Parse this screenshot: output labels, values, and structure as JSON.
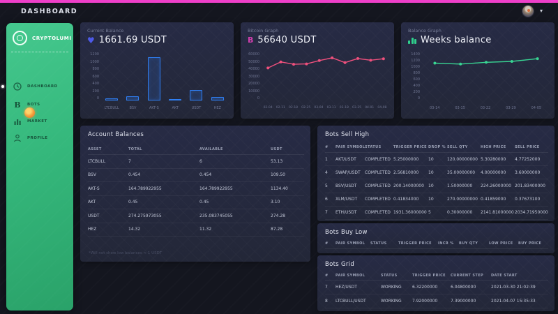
{
  "topbar": {
    "title": "DASHBOARD"
  },
  "user_menu": {
    "avatar_icon": "user-avatar",
    "caret_icon": "chevron-down-icon",
    "caret": "▾"
  },
  "sidebar": {
    "brand": "CRYPTOLUMI",
    "items": [
      {
        "label": "DASHBOARD",
        "icon": "clock-icon",
        "active": true
      },
      {
        "label": "BOTS",
        "icon": "bitcoin-b-icon",
        "active": false
      },
      {
        "label": "MARKET",
        "icon": "bar-chart-icon",
        "active": false
      },
      {
        "label": "PROFILE",
        "icon": "person-icon",
        "active": false
      }
    ]
  },
  "cards": {
    "current_balance": {
      "label": "Current Balance",
      "icon": "heart-icon",
      "heart": "♥",
      "value": "1661.69 USDT"
    },
    "bitcoin_graph": {
      "label": "Bitcoin Graph",
      "icon": "bitcoin-b-icon",
      "b": "B",
      "value": "56640 USDT"
    },
    "balance_graph": {
      "label": "Balance Graph",
      "icon": "mini-bars-icon",
      "value": "Weeks balance"
    }
  },
  "colors": {
    "accent_pink": "#ee3fc9",
    "sidebar_green": "#35b87c",
    "bar_blue": "#2f7ef2",
    "line_pink": "#f0507d",
    "line_green": "#38d593",
    "heart_blue": "#4d5ae9",
    "b_pink": "#cf3fae"
  },
  "chart_data": [
    {
      "type": "bar",
      "title": "Current Balance (USDT)",
      "categories": [
        "LTCBULL",
        "BSV",
        "AKT-S",
        "AKT",
        "USDT",
        "HEZ"
      ],
      "values": [
        53.13,
        109.5,
        1134.4,
        3.1,
        274.28,
        87.28
      ],
      "ylim": [
        0,
        1200
      ],
      "yticks": [
        1200,
        1000,
        800,
        600,
        400,
        200,
        0
      ],
      "xlabel": "",
      "ylabel": "",
      "grid": false,
      "legend": "none",
      "color": "#2f7ef2"
    },
    {
      "type": "line",
      "title": "Bitcoin Graph (USDT)",
      "x": [
        "02-04",
        "02-11",
        "02-18",
        "02-25",
        "03-04",
        "03-11",
        "03-18",
        "03-25",
        "04-01",
        "04-08"
      ],
      "values": [
        43000,
        52000,
        48500,
        49000,
        54000,
        58000,
        51000,
        57000,
        54500,
        56640
      ],
      "ylim": [
        0,
        60000
      ],
      "yticks": [
        60000,
        50000,
        40000,
        30000,
        20000,
        10000,
        0
      ],
      "xlabel": "",
      "ylabel": "",
      "grid": false,
      "legend": "none",
      "color": "#f0507d"
    },
    {
      "type": "line",
      "title": "Weeks balance (USDT)",
      "x": [
        "03-14",
        "03-15",
        "03-22",
        "03-29",
        "04-05"
      ],
      "values": [
        1170,
        1140,
        1200,
        1230,
        1325
      ],
      "ylim": [
        0,
        1400
      ],
      "yticks": [
        1400,
        1200,
        1000,
        800,
        600,
        400,
        200,
        0
      ],
      "xlabel": "",
      "ylabel": "",
      "grid": false,
      "legend": "none",
      "color": "#38d593"
    }
  ],
  "account_balances": {
    "title": "Account Balances",
    "columns": [
      "ASSET",
      "TOTAL",
      "AVAILABLE",
      "USDT"
    ],
    "rows": [
      [
        "LTCBULL",
        "7",
        "6",
        "53.13"
      ],
      [
        "BSV",
        "0.454",
        "0.454",
        "109.50"
      ],
      [
        "AKT-S",
        "164.789922955",
        "164.789922955",
        "1134.40"
      ],
      [
        "AKT",
        "0.45",
        "0.45",
        "3.10"
      ],
      [
        "USDT",
        "274.275973055",
        "235.083745055",
        "274.28"
      ],
      [
        "HEZ",
        "14.32",
        "11.32",
        "87.28"
      ]
    ],
    "note": "*Will not show low balances < 1 USDT"
  },
  "bots_sell_high": {
    "title": "Bots Sell High",
    "columns": [
      "#",
      "PAIR SYMBOL",
      "STATUS",
      "TRIGGER PRICE",
      "DROP %",
      "SELL QTY",
      "HIGH PRICE",
      "SELL PRICE"
    ],
    "rows": [
      [
        "1",
        "AKT/USDT",
        "COMPLETED",
        "5.25000000",
        "10",
        "120.00000000",
        "5.30280000",
        "4.77252000"
      ],
      [
        "4",
        "SWAP/USDT",
        "COMPLETED",
        "2.56810000",
        "10",
        "35.00000000",
        "4.00000000",
        "3.60000000"
      ],
      [
        "5",
        "BSV/USDT",
        "COMPLETED",
        "200.14000000",
        "10",
        "1.50000000",
        "224.26000000",
        "201.83400000"
      ],
      [
        "6",
        "XLM/USDT",
        "COMPLETED",
        "0.41834000",
        "10",
        "270.00000000",
        "0.41859000",
        "0.37673100"
      ],
      [
        "7",
        "ETH/USDT",
        "COMPLETED",
        "1931.36000000",
        "5",
        "0.30000000",
        "2141.81000000",
        "2034.71950000"
      ]
    ]
  },
  "bots_buy_low": {
    "title": "Bots Buy Low",
    "columns": [
      "#",
      "PAIR SYMBOL",
      "STATUS",
      "TRIGGER PRICE",
      "INCR %",
      "BUY QTY",
      "LOW PRICE",
      "BUY PRICE"
    ],
    "rows": []
  },
  "bots_grid": {
    "title": "Bots Grid",
    "columns": [
      "#",
      "PAIR SYMBOL",
      "STATUS",
      "TRIGGER PRICE",
      "CURRENT STEP",
      "DATE START"
    ],
    "rows": [
      [
        "7",
        "HEZ/USDT",
        "WORKING",
        "6.32200000",
        "6.04800000",
        "2021-03-30 21:02:39"
      ],
      [
        "8",
        "LTCBULL/USDT",
        "WORKING",
        "7.92000000",
        "7.39000000",
        "2021-04-07 15:35:33"
      ]
    ]
  }
}
